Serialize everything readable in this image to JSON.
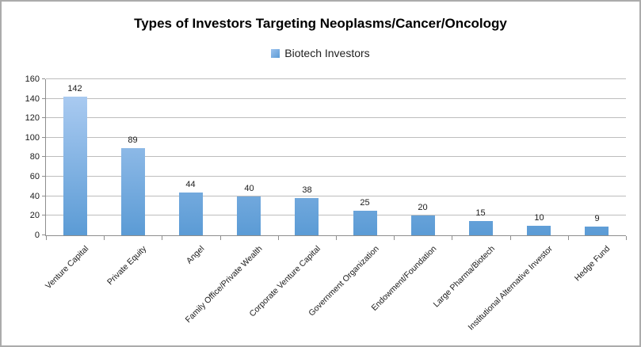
{
  "chart_data": {
    "type": "bar",
    "title": "Types of Investors Targeting Neoplasms/Cancer/Oncology",
    "legend_label": "Biotech Investors",
    "legend_position": "top",
    "categories": [
      "Venture Capital",
      "Private Equity",
      "Angel",
      "Family Office/Private Wealth",
      "Corporate Venture Capital",
      "Government Organization",
      "Endowment/Foundation",
      "Large Pharma/Biotech",
      "Institutional Alternative Investor",
      "Hedge Fund"
    ],
    "series": [
      {
        "name": "Biotech Investors",
        "values": [
          142,
          89,
          44,
          40,
          38,
          25,
          20,
          15,
          10,
          9
        ]
      }
    ],
    "data_labels_shown": true,
    "ylim": [
      0,
      160
    ],
    "yticks": [
      0,
      20,
      40,
      60,
      80,
      100,
      120,
      140,
      160
    ],
    "grid": true,
    "colors": {
      "bar_gradient_top": "#b3d0f4",
      "bar_gradient_bottom": "#5b9bd5",
      "legend_swatch_top": "#9cc2ee",
      "legend_swatch_bottom": "#5b9bd5",
      "gridline": "#bdbdbd",
      "axis": "#8e8e8e",
      "text": "#1a1a1a",
      "frame_border": "#ababab"
    }
  }
}
